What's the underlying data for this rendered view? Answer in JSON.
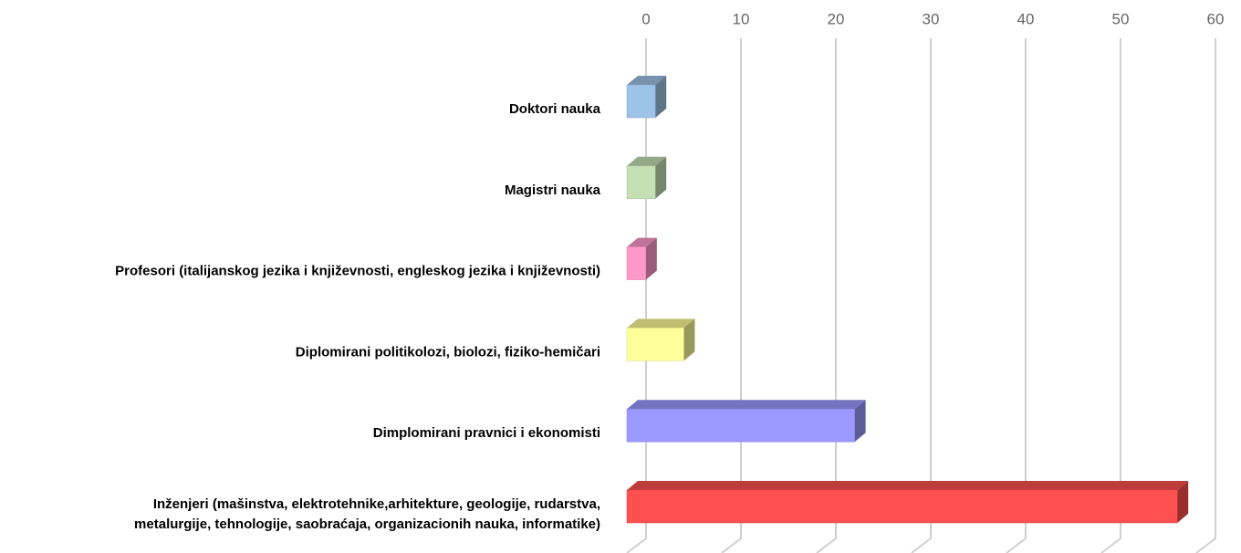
{
  "chart_data": {
    "type": "bar3d_horizontal",
    "categories": [
      "Doktori nauka",
      "Magistri nauka",
      "Profesori (italijanskog jezika i književnosti, engleskog jezika i književnosti)",
      "Diplomirani politikolozi, biolozi, fiziko-hemičari",
      "Dimplomirani pravnici i ekonomisti",
      "Inženjeri (mašinstva, elektrotehnike,arhitekture, geologije, rudarstva,\nmetalurgije, tehnologije, saobraćaja, organizacionih nauka, informatike)"
    ],
    "values": [
      3,
      3,
      2,
      6,
      24,
      58
    ],
    "colors": [
      "#9dc3e6",
      "#c5e0b4",
      "#ff99cc",
      "#ffff99",
      "#9999ff",
      "#ff5050"
    ],
    "xlim": [
      0,
      60
    ],
    "xticks": [
      0,
      10,
      20,
      30,
      40,
      50,
      60
    ],
    "grid": true
  }
}
